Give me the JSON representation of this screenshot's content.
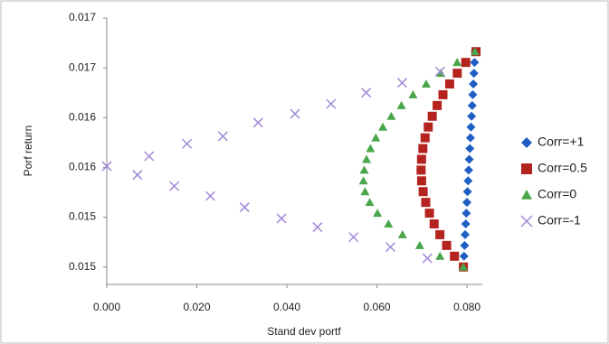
{
  "chart_data": {
    "type": "scatter",
    "x_label": "Stand dev portf",
    "y_label": "Porf return",
    "xlim": [
      0,
      0.0834
    ],
    "ylim": [
      0.01486,
      0.017
    ],
    "xticks": [
      {
        "value": 0,
        "label": "0.000"
      },
      {
        "value": 0.02,
        "label": "0.020"
      },
      {
        "value": 0.04,
        "label": "0.040"
      },
      {
        "value": 0.06,
        "label": "0.060"
      },
      {
        "value": 0.08,
        "label": "0.080"
      }
    ],
    "yticks": [
      {
        "value": 0.015,
        "label": "0.015"
      },
      {
        "value": 0.0154,
        "label": "0.015"
      },
      {
        "value": 0.0158,
        "label": "0.016"
      },
      {
        "value": 0.0162,
        "label": "0.016"
      },
      {
        "value": 0.0166,
        "label": "0.017"
      },
      {
        "value": 0.017,
        "label": "0.017"
      }
    ],
    "legend": "right",
    "series": [
      {
        "name": "Corr=+1",
        "color": "#1f5fc4",
        "marker": "diamond",
        "x": [
          0.0792,
          0.07933,
          0.07946,
          0.07959,
          0.07972,
          0.07985,
          0.07998,
          0.08011,
          0.08024,
          0.08037,
          0.0805,
          0.08063,
          0.08076,
          0.08089,
          0.08102,
          0.08115,
          0.08128,
          0.08141,
          0.08154,
          0.08167,
          0.0818
        ],
        "values": [
          0.015,
          0.0150865,
          0.015173,
          0.0152595,
          0.015346,
          0.0154325,
          0.015519,
          0.0156055,
          0.015692,
          0.0157785,
          0.015865,
          0.0159515,
          0.016038,
          0.0161245,
          0.016211,
          0.0162975,
          0.016384,
          0.0164705,
          0.016557,
          0.0166435,
          0.01673
        ]
      },
      {
        "name": "Corr=0.5",
        "color": "#b5231f",
        "marker": "square",
        "x": [
          0.0792,
          0.07722,
          0.07548,
          0.07398,
          0.0727,
          0.07166,
          0.07084,
          0.07026,
          0.06992,
          0.0698,
          0.0699,
          0.0702,
          0.07069,
          0.07139,
          0.07228,
          0.07337,
          0.07466,
          0.07615,
          0.07784,
          0.07972,
          0.082
        ],
        "values": [
          0.015,
          0.0150865,
          0.015173,
          0.0152595,
          0.015346,
          0.0154325,
          0.015519,
          0.0156055,
          0.015692,
          0.0157785,
          0.015865,
          0.0159515,
          0.016038,
          0.0161245,
          0.016211,
          0.0162975,
          0.016384,
          0.0164705,
          0.016557,
          0.0166435,
          0.01673
        ]
      },
      {
        "name": "Corr=0",
        "color": "#4aa64a",
        "marker": "triangle",
        "x": [
          0.0792,
          0.074,
          0.0695,
          0.06568,
          0.06255,
          0.06012,
          0.05839,
          0.05735,
          0.057,
          0.05717,
          0.05769,
          0.05855,
          0.05975,
          0.0613,
          0.06319,
          0.06543,
          0.06801,
          0.07093,
          0.0742,
          0.07781,
          0.08177
        ],
        "values": [
          0.015,
          0.0150865,
          0.015173,
          0.0152595,
          0.015346,
          0.0154325,
          0.015519,
          0.0156055,
          0.015692,
          0.0157785,
          0.015865,
          0.0159515,
          0.016038,
          0.0161245,
          0.016211,
          0.0162975,
          0.016384,
          0.0164705,
          0.016557,
          0.0166435,
          0.01673
        ]
      },
      {
        "name": "Corr=-1",
        "color": "#a08ad6",
        "marker": "cross",
        "x": [
          0,
          0.0068,
          0.0094,
          0.015,
          0.0178,
          0.023,
          0.0258,
          0.0306,
          0.0336,
          0.0388,
          0.0418,
          0.0468,
          0.0498,
          0.0548,
          0.0576,
          0.063,
          0.0656,
          0.0712,
          0.074
        ],
        "values": [
          0.01581,
          0.01574,
          0.01589,
          0.01565,
          0.01599,
          0.01557,
          0.01605,
          0.01548,
          0.01616,
          0.01539,
          0.01623,
          0.01532,
          0.01631,
          0.01524,
          0.0164,
          0.01516,
          0.01648,
          0.01507,
          0.01657
        ]
      }
    ]
  }
}
